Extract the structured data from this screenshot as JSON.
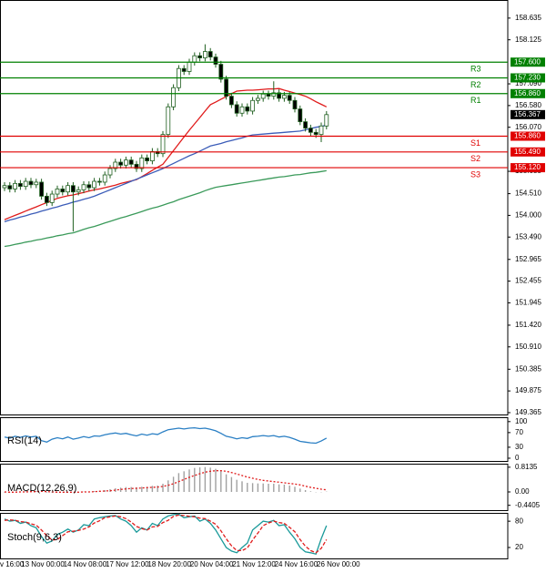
{
  "chart_data": [
    {
      "type": "candlestick",
      "categories": [
        "v 16:00",
        null,
        null,
        null,
        "13 Nov 00:00",
        null,
        null,
        null,
        null,
        null,
        null,
        null,
        "14 Nov 08:00",
        null,
        null,
        null,
        null,
        null,
        null,
        null,
        "17 Nov 12:00",
        null,
        null,
        null,
        null,
        null,
        null,
        null,
        "18 Nov 20:00",
        null,
        null,
        null,
        null,
        null,
        null,
        null,
        "20 Nov 04:00",
        null,
        null,
        null,
        null,
        null,
        null,
        null,
        "21 Nov 12:00",
        null,
        null,
        null,
        null,
        null,
        null,
        null,
        "24 Nov 16:00",
        null,
        null,
        null,
        null,
        null,
        null,
        null,
        "26 Nov 00:00",
        null
      ],
      "open": [
        154.65,
        154.7,
        154.62,
        154.75,
        154.68,
        154.8,
        154.72,
        154.78,
        154.45,
        154.3,
        154.5,
        154.62,
        154.55,
        154.7,
        154.55,
        154.6,
        154.72,
        154.65,
        154.8,
        154.78,
        154.95,
        155.1,
        155.25,
        155.18,
        155.3,
        155.2,
        155.1,
        155.35,
        155.28,
        155.5,
        155.45,
        155.9,
        156.55,
        157.0,
        157.45,
        157.38,
        157.6,
        157.75,
        157.7,
        157.85,
        157.72,
        157.55,
        157.2,
        156.8,
        156.6,
        156.4,
        156.55,
        156.45,
        156.7,
        156.75,
        156.85,
        156.8,
        156.88,
        156.75,
        156.82,
        156.7,
        156.5,
        156.2,
        156.05,
        155.95,
        155.9,
        156.1
      ],
      "high": [
        154.78,
        154.78,
        154.83,
        154.83,
        154.88,
        154.88,
        154.86,
        154.86,
        154.53,
        154.58,
        154.7,
        154.7,
        154.78,
        154.78,
        154.68,
        154.8,
        154.8,
        154.88,
        154.88,
        155.03,
        155.18,
        155.33,
        155.33,
        155.38,
        155.38,
        155.28,
        155.43,
        155.43,
        155.58,
        155.58,
        155.98,
        156.63,
        157.08,
        157.53,
        157.53,
        157.68,
        157.83,
        157.83,
        158.02,
        157.93,
        157.8,
        157.63,
        157.28,
        156.88,
        156.68,
        156.63,
        156.63,
        156.78,
        156.83,
        156.93,
        156.93,
        157.15,
        156.96,
        156.9,
        156.9,
        156.78,
        156.58,
        156.28,
        156.13,
        156.03,
        156.18,
        156.45
      ],
      "low": [
        154.57,
        154.54,
        154.54,
        154.6,
        154.6,
        154.64,
        154.64,
        154.37,
        154.22,
        154.22,
        154.42,
        154.47,
        154.47,
        153.62,
        154.47,
        154.52,
        154.57,
        154.57,
        154.7,
        154.7,
        154.87,
        155.02,
        155.1,
        155.1,
        155.12,
        155.02,
        155.02,
        155.2,
        155.2,
        155.37,
        155.37,
        155.82,
        156.47,
        156.92,
        157.3,
        157.3,
        157.52,
        157.62,
        157.62,
        157.64,
        157.47,
        157.12,
        156.72,
        156.52,
        156.32,
        156.32,
        156.37,
        156.37,
        156.62,
        156.67,
        156.72,
        156.72,
        156.67,
        156.67,
        156.62,
        156.42,
        156.12,
        155.97,
        155.87,
        155.82,
        155.72,
        156.02
      ],
      "close": [
        154.7,
        154.62,
        154.75,
        154.68,
        154.8,
        154.72,
        154.78,
        154.45,
        154.3,
        154.5,
        154.62,
        154.55,
        154.7,
        154.55,
        154.6,
        154.72,
        154.65,
        154.8,
        154.78,
        154.95,
        155.1,
        155.25,
        155.18,
        155.3,
        155.2,
        155.1,
        155.35,
        155.28,
        155.5,
        155.45,
        155.9,
        156.55,
        157.0,
        157.45,
        157.38,
        157.6,
        157.75,
        157.7,
        157.85,
        157.72,
        157.55,
        157.2,
        156.8,
        156.6,
        156.4,
        156.55,
        156.45,
        156.7,
        156.75,
        156.85,
        156.8,
        156.88,
        156.75,
        156.82,
        156.7,
        156.5,
        156.2,
        156.05,
        155.95,
        155.9,
        156.1,
        156.367
      ],
      "up_color": "#ffffff",
      "down_color": "#000000",
      "candle_stroke": "#1f5f1f",
      "series": [
        {
          "color": "#e01b1b",
          "values": [
            153.9,
            153.95,
            154.0,
            154.05,
            154.1,
            154.15,
            154.2,
            154.25,
            154.3,
            154.35,
            154.4,
            154.43,
            154.46,
            154.48,
            154.51,
            154.54,
            154.57,
            154.6,
            154.62,
            154.65,
            154.68,
            154.71,
            154.75,
            154.78,
            154.81,
            154.84,
            154.91,
            154.98,
            155.06,
            155.13,
            155.2,
            155.36,
            155.52,
            155.68,
            155.84,
            156.0,
            156.15,
            156.3,
            156.45,
            156.6,
            156.66,
            156.73,
            156.79,
            156.86,
            156.92,
            156.93,
            156.94,
            156.94,
            156.95,
            156.96,
            156.97,
            156.97,
            156.98,
            156.94,
            156.91,
            156.87,
            156.84,
            156.8,
            156.74,
            156.67,
            156.61,
            156.55
          ]
        },
        {
          "color": "#3b5cb8",
          "values": [
            153.85,
            153.89,
            153.92,
            153.96,
            153.99,
            154.03,
            154.06,
            154.1,
            154.13,
            154.17,
            154.2,
            154.24,
            154.27,
            154.31,
            154.34,
            154.38,
            154.41,
            154.45,
            154.5,
            154.55,
            154.6,
            154.65,
            154.7,
            154.75,
            154.8,
            154.85,
            154.9,
            154.95,
            155.0,
            155.05,
            155.1,
            155.16,
            155.22,
            155.28,
            155.34,
            155.4,
            155.45,
            155.51,
            155.57,
            155.63,
            155.66,
            155.69,
            155.73,
            155.76,
            155.79,
            155.82,
            155.86,
            155.89,
            155.9,
            155.91,
            155.92,
            155.93,
            155.94,
            155.95,
            155.96,
            155.97,
            155.98,
            156.01,
            156.04,
            156.07,
            156.09,
            156.12
          ]
        },
        {
          "color": "#3a9a5a",
          "values": [
            153.27,
            153.29,
            153.32,
            153.34,
            153.37,
            153.39,
            153.42,
            153.44,
            153.47,
            153.49,
            153.52,
            153.54,
            153.57,
            153.59,
            153.63,
            153.67,
            153.71,
            153.74,
            153.78,
            153.82,
            153.86,
            153.9,
            153.94,
            153.97,
            154.01,
            154.05,
            154.09,
            154.13,
            154.17,
            154.2,
            154.24,
            154.28,
            154.32,
            154.37,
            154.41,
            154.45,
            154.49,
            154.53,
            154.58,
            154.62,
            154.66,
            154.68,
            154.7,
            154.72,
            154.74,
            154.76,
            154.78,
            154.8,
            154.82,
            154.84,
            154.86,
            154.88,
            154.9,
            154.91,
            154.93,
            154.95,
            154.96,
            154.98,
            155.0,
            155.01,
            155.03,
            155.05
          ]
        }
      ],
      "levels": [
        {
          "label": "R3",
          "value": 157.6,
          "value_label": "157.600",
          "color": "#008000"
        },
        {
          "label": "R2",
          "value": 157.23,
          "value_label": "157.230",
          "color": "#008000"
        },
        {
          "label": "R1",
          "value": 156.86,
          "value_label": "156.860",
          "color": "#008000"
        },
        {
          "label": "S1",
          "value": 155.86,
          "value_label": "155.860",
          "color": "#e00000"
        },
        {
          "label": "S2",
          "value": 155.49,
          "value_label": "155.490",
          "color": "#e00000"
        },
        {
          "label": "S3",
          "value": 155.12,
          "value_label": "155.120",
          "color": "#e00000"
        }
      ],
      "last_price": {
        "value": 156.367,
        "label": "156.367",
        "color": "#000000"
      },
      "ylim": [
        149.3,
        159.06
      ],
      "yticks": [
        158.635,
        158.125,
        {
          "value": 157.09,
          "label": "157.090"
        },
        {
          "value": 156.58,
          "label": "156.580"
        },
        {
          "value": 156.07,
          "label": "156.070"
        },
        155.035,
        {
          "value": 154.51,
          "label": "154.510"
        },
        {
          "value": 154.0,
          "label": "154.000"
        },
        {
          "value": 153.49,
          "label": "153.490"
        },
        152.965,
        152.455,
        151.945,
        {
          "value": 151.42,
          "label": "151.420"
        },
        {
          "value": 150.91,
          "label": "150.910"
        },
        150.385,
        149.875,
        149.365
      ]
    },
    {
      "type": "line",
      "title": "RSI(14)",
      "ylim": [
        -10,
        112
      ],
      "yticks": [
        100,
        70,
        30,
        0
      ],
      "series": [
        {
          "color": "#2a7fc4",
          "values": [
            58,
            55,
            60,
            57,
            61,
            58,
            60,
            48,
            44,
            52,
            56,
            53,
            58,
            52,
            55,
            59,
            56,
            61,
            60,
            64,
            67,
            69,
            66,
            68,
            64,
            61,
            66,
            63,
            67,
            65,
            72,
            78,
            80,
            82,
            80,
            82,
            83,
            81,
            82,
            79,
            75,
            68,
            60,
            57,
            53,
            56,
            54,
            59,
            60,
            62,
            60,
            62,
            58,
            60,
            57,
            52,
            46,
            44,
            42,
            41,
            47,
            55
          ]
        }
      ]
    },
    {
      "type": "macd",
      "title": "MACD(12,26,9)",
      "ylim": [
        -0.63,
        0.93
      ],
      "yticks": [
        0.8135,
        {
          "value": 0,
          "label": "0.00"
        },
        -0.4405
      ],
      "histogram_color": "#a0a0a0",
      "values": [
        -0.02,
        -0.01,
        0,
        0.01,
        0.02,
        0.02,
        0.03,
        0.01,
        -0.02,
        -0.02,
        -0.01,
        -0.01,
        0,
        -0.01,
        0,
        0.01,
        0.01,
        0.03,
        0.04,
        0.06,
        0.09,
        0.12,
        0.14,
        0.16,
        0.16,
        0.15,
        0.17,
        0.17,
        0.2,
        0.21,
        0.27,
        0.38,
        0.5,
        0.62,
        0.68,
        0.74,
        0.79,
        0.81,
        0.82,
        0.8,
        0.76,
        0.68,
        0.58,
        0.49,
        0.4,
        0.35,
        0.3,
        0.29,
        0.28,
        0.28,
        0.27,
        0.27,
        0.25,
        0.24,
        0.21,
        0.17,
        0.11,
        0.06,
        0.02,
        -0.01,
        -0.01,
        0.01
      ],
      "series": [
        {
          "color": "#e01b1b",
          "style": "dotted",
          "values": [
            0,
            -0.01,
            -0.01,
            0,
            0,
            0.01,
            0.01,
            0.02,
            0.01,
            0,
            -0.01,
            -0.01,
            -0.01,
            -0.01,
            -0.01,
            0,
            0,
            0.01,
            0.02,
            0.03,
            0.04,
            0.06,
            0.08,
            0.1,
            0.11,
            0.12,
            0.13,
            0.14,
            0.15,
            0.16,
            0.18,
            0.22,
            0.27,
            0.34,
            0.41,
            0.48,
            0.54,
            0.6,
            0.65,
            0.68,
            0.7,
            0.7,
            0.68,
            0.64,
            0.59,
            0.54,
            0.49,
            0.45,
            0.41,
            0.38,
            0.36,
            0.34,
            0.32,
            0.3,
            0.28,
            0.26,
            0.23,
            0.19,
            0.15,
            0.12,
            0.09,
            0.07
          ]
        }
      ]
    },
    {
      "type": "line",
      "title": "Stoch(9,6,3)",
      "ylim": [
        -7,
        99
      ],
      "yticks": [
        80,
        20
      ],
      "series": [
        {
          "color": "#1a9a9a",
          "values": [
            85,
            80,
            82,
            75,
            78,
            70,
            65,
            45,
            30,
            35,
            50,
            55,
            62,
            55,
            60,
            72,
            70,
            85,
            88,
            90,
            92,
            93,
            85,
            80,
            70,
            55,
            65,
            60,
            75,
            70,
            85,
            92,
            95,
            96,
            88,
            90,
            92,
            80,
            85,
            75,
            60,
            40,
            20,
            12,
            8,
            20,
            30,
            60,
            70,
            80,
            78,
            82,
            70,
            72,
            55,
            40,
            20,
            10,
            8,
            5,
            40,
            70
          ]
        },
        {
          "color": "#e01b1b",
          "style": "dashed",
          "values": [
            82,
            83,
            82,
            79,
            78,
            74,
            71,
            60,
            47,
            37,
            38,
            47,
            56,
            57,
            59,
            62,
            67,
            76,
            81,
            88,
            90,
            92,
            90,
            86,
            78,
            68,
            63,
            60,
            67,
            68,
            77,
            82,
            91,
            94,
            93,
            91,
            90,
            87,
            86,
            80,
            73,
            58,
            40,
            24,
            13,
            13,
            19,
            37,
            53,
            70,
            76,
            80,
            77,
            75,
            66,
            56,
            38,
            23,
            13,
            8,
            18,
            38
          ]
        }
      ]
    }
  ]
}
